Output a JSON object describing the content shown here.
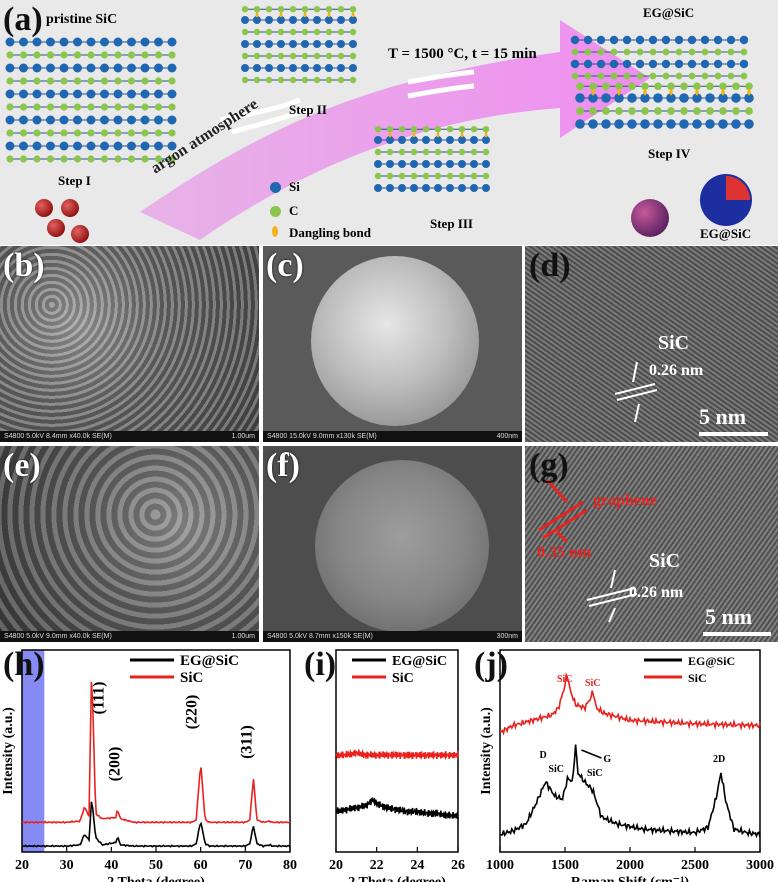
{
  "panel_a": {
    "label": "(a)",
    "title_pristine": "pristine SiC",
    "condition": "T = 1500 °C, t = 15 min",
    "title_eg": "EG@SiC",
    "arrow_text": "argon atmosphere",
    "steps": [
      "Step I",
      "Step II",
      "Step III",
      "Step IV"
    ],
    "legend": [
      {
        "symbol": "blue-circle",
        "label": "Si",
        "color": "#1f67b1"
      },
      {
        "symbol": "green-circle",
        "label": "C",
        "color": "#8ac64a"
      },
      {
        "symbol": "orange-ellipse",
        "label": "Dangling bond",
        "color": "#f2b21b"
      }
    ],
    "sphere_label": "EG@SiC"
  },
  "panel_b": {
    "label": "(b)",
    "footer_left": "S4800 5.0kV 8.4mm x40.0k SE(M)",
    "footer_right": "1.00um"
  },
  "panel_c": {
    "label": "(c)",
    "footer_left": "S4800 15.0kV 9.0mm x130k SE(M)",
    "footer_right": "400nm"
  },
  "panel_d": {
    "label": "(d)",
    "material": "SiC",
    "spacing": "0.26 nm",
    "scale": "5 nm"
  },
  "panel_e": {
    "label": "(e)",
    "footer_left": "S4800 5.0kV 9.0mm x40.0k SE(M)",
    "footer_right": "1.00um"
  },
  "panel_f": {
    "label": "(f)",
    "footer_left": "S4800 5.0kV 8.7mm x150k SE(M)",
    "footer_right": "300nm"
  },
  "panel_g": {
    "label": "(g)",
    "graphene": "graphene",
    "graphene_spacing": "0.35 nm",
    "material": "SiC",
    "spacing": "0.26 nm",
    "scale": "5 nm"
  },
  "chart_data": [
    {
      "panel": "(h)",
      "type": "line",
      "xlabel": "2 Theta (degree)",
      "ylabel": "Intensity (a.u.)",
      "xlim": [
        20,
        80
      ],
      "xticks": [
        20,
        30,
        40,
        50,
        60,
        70,
        80
      ],
      "legend_position": "top-right",
      "highlight_range": [
        20,
        25
      ],
      "peak_labels": [
        {
          "x": 35.6,
          "label": "(111)"
        },
        {
          "x": 41.4,
          "label": "(200)"
        },
        {
          "x": 60.0,
          "label": "(220)"
        },
        {
          "x": 71.8,
          "label": "(311)"
        }
      ],
      "series": [
        {
          "name": "EG@SiC",
          "color": "#000000",
          "x": [
            20,
            25,
            30,
            33,
            34,
            35,
            35.6,
            36.5,
            38,
            41,
            41.4,
            42,
            45,
            50,
            55,
            58,
            59,
            60,
            61,
            62,
            65,
            70,
            71,
            71.8,
            72.6,
            74,
            75.5,
            76,
            80
          ],
          "y": [
            0.05,
            0.05,
            0.05,
            0.06,
            0.15,
            0.1,
            0.45,
            0.12,
            0.06,
            0.08,
            0.13,
            0.06,
            0.05,
            0.05,
            0.05,
            0.05,
            0.07,
            0.26,
            0.07,
            0.05,
            0.05,
            0.05,
            0.07,
            0.22,
            0.07,
            0.05,
            0.06,
            0.05,
            0.05
          ]
        },
        {
          "name": "SiC",
          "color": "#e8231f",
          "x": [
            20,
            25,
            30,
            33,
            34,
            35,
            35.6,
            36.5,
            38,
            41,
            41.4,
            42,
            45,
            50,
            55,
            58,
            59,
            60,
            61,
            62,
            65,
            70,
            71,
            71.8,
            72.6,
            74,
            75.5,
            76,
            80
          ],
          "y": [
            0.25,
            0.25,
            0.25,
            0.26,
            0.38,
            0.3,
            1.55,
            0.32,
            0.28,
            0.29,
            0.36,
            0.28,
            0.25,
            0.25,
            0.25,
            0.25,
            0.27,
            0.75,
            0.27,
            0.25,
            0.25,
            0.25,
            0.27,
            0.62,
            0.27,
            0.25,
            0.26,
            0.25,
            0.25
          ]
        }
      ]
    },
    {
      "panel": "(i)",
      "type": "line",
      "xlabel": "2 Theta (degree)",
      "xlim": [
        20,
        26
      ],
      "xticks": [
        20,
        22,
        24,
        26
      ],
      "legend_position": "top-right",
      "series": [
        {
          "name": "EG@SiC",
          "color": "#000000",
          "x": [
            20,
            20.5,
            21,
            21.5,
            21.8,
            22,
            22.5,
            23,
            23.5,
            24,
            24.5,
            25,
            25.5,
            26
          ],
          "y": [
            0.2,
            0.21,
            0.22,
            0.23,
            0.26,
            0.24,
            0.22,
            0.21,
            0.2,
            0.2,
            0.19,
            0.19,
            0.18,
            0.18
          ]
        },
        {
          "name": "SiC",
          "color": "#e8231f",
          "x": [
            20,
            20.5,
            21,
            21.5,
            22,
            22.5,
            23,
            23.5,
            24,
            24.5,
            25,
            25.5,
            26
          ],
          "y": [
            0.48,
            0.48,
            0.49,
            0.48,
            0.48,
            0.48,
            0.48,
            0.48,
            0.48,
            0.48,
            0.48,
            0.48,
            0.48
          ]
        }
      ]
    },
    {
      "panel": "(j)",
      "type": "line",
      "xlabel": "Raman Shift (cm⁻¹)",
      "ylabel": "Intensity (a.u.)",
      "xlim": [
        1000,
        3000
      ],
      "xticks": [
        1000,
        1500,
        2000,
        2500,
        3000
      ],
      "legend_position": "top-right",
      "annotations": [
        {
          "text": "SiC",
          "series": "SiC",
          "x": 1515
        },
        {
          "text": "SiC",
          "series": "SiC",
          "x": 1715
        },
        {
          "text": "D",
          "series": "EG@SiC",
          "x": 1350
        },
        {
          "text": "SiC",
          "series": "EG@SiC",
          "x": 1500
        },
        {
          "text": "G",
          "series": "EG@SiC",
          "x": 1580
        },
        {
          "text": "SiC",
          "series": "EG@SiC",
          "x": 1715
        },
        {
          "text": "2D",
          "series": "EG@SiC",
          "x": 2700
        }
      ],
      "series": [
        {
          "name": "EG@SiC",
          "color": "#000000",
          "x": [
            1000,
            1100,
            1200,
            1280,
            1350,
            1420,
            1480,
            1520,
            1560,
            1580,
            1600,
            1650,
            1715,
            1780,
            1900,
            2100,
            2300,
            2500,
            2600,
            2660,
            2700,
            2740,
            2800,
            2900,
            3000
          ],
          "y": [
            0.1,
            0.12,
            0.16,
            0.28,
            0.4,
            0.32,
            0.3,
            0.42,
            0.4,
            0.62,
            0.45,
            0.4,
            0.35,
            0.2,
            0.16,
            0.13,
            0.12,
            0.11,
            0.14,
            0.3,
            0.45,
            0.28,
            0.13,
            0.11,
            0.1
          ]
        },
        {
          "name": "SiC",
          "color": "#e8231f",
          "x": [
            1000,
            1100,
            1200,
            1300,
            1400,
            1450,
            1500,
            1515,
            1540,
            1580,
            1650,
            1700,
            1715,
            1740,
            1800,
            2000,
            2500,
            3000
          ],
          "y": [
            0.68,
            0.72,
            0.74,
            0.76,
            0.78,
            0.82,
            0.95,
            1.02,
            0.92,
            0.84,
            0.82,
            0.88,
            0.92,
            0.82,
            0.79,
            0.75,
            0.73,
            0.72
          ]
        }
      ]
    }
  ]
}
